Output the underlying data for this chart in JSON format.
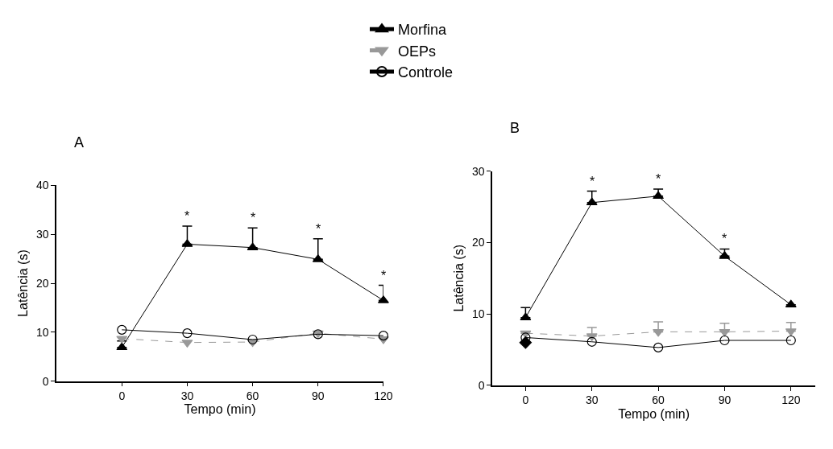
{
  "chart_data": [
    {
      "type": "line",
      "title": "A",
      "xlabel": "Tempo (min)",
      "ylabel": "Latência (s)",
      "x": [
        0,
        30,
        60,
        90,
        120
      ],
      "xlim": [
        -30,
        120
      ],
      "xticks": [
        0,
        30,
        60,
        90,
        120
      ],
      "ylim": [
        0,
        40
      ],
      "yticks": [
        0,
        10,
        20,
        30,
        40
      ],
      "legend": "top",
      "series": [
        {
          "name": "Morfina",
          "color": "#000000",
          "marker": "triangle",
          "line_style": "solid",
          "values": [
            6.9,
            28.0,
            27.3,
            24.9,
            16.5
          ],
          "errors": [
            [
              6.9,
              8.2
            ],
            [
              28.0,
              31.7
            ],
            [
              27.3,
              31.3
            ],
            [
              24.9,
              29.1
            ],
            [
              16.5,
              19.6
            ]
          ]
        },
        {
          "name": "OEPs",
          "color": "#999999",
          "marker": "triangle-down",
          "line_style": "dashed",
          "values": [
            8.7,
            7.9,
            8.0,
            9.8,
            8.6
          ]
        },
        {
          "name": "Controle",
          "color": "#000000",
          "marker": "circle-open",
          "line_style": "solid",
          "values": [
            10.5,
            9.8,
            8.5,
            9.6,
            9.3
          ]
        }
      ],
      "annotations": [
        {
          "text": "*",
          "x": 30,
          "y": 31.7
        },
        {
          "text": "*",
          "x": 60,
          "y": 31.3
        },
        {
          "text": "*",
          "x": 90,
          "y": 29.1
        },
        {
          "text": "*",
          "x": 120,
          "y": 19.6
        }
      ]
    },
    {
      "type": "line",
      "title": "B",
      "xlabel": "Tempo (min)",
      "ylabel": "Latência (s)",
      "x": [
        0,
        30,
        60,
        90,
        120
      ],
      "xlim": [
        -15,
        131
      ],
      "xticks": [
        0,
        30,
        60,
        90,
        120
      ],
      "ylim": [
        0,
        30
      ],
      "yticks": [
        0,
        10,
        20,
        30
      ],
      "series": [
        {
          "color": "#000000",
          "marker": "triangle",
          "line_style": "solid",
          "values": [
            9.5,
            25.6,
            26.5,
            18.1,
            11.3
          ],
          "errors": [
            [
              9.5,
              10.9
            ],
            [
              25.6,
              27.2
            ],
            [
              26.5,
              27.5
            ],
            [
              18.1,
              19.1
            ],
            null
          ]
        },
        {
          "color": "#999999",
          "marker": "triangle-down",
          "line_style": "dashed",
          "values": [
            7.3,
            6.9,
            7.5,
            7.5,
            7.6
          ],
          "errors": [
            null,
            [
              6.9,
              8.1
            ],
            [
              7.5,
              8.9
            ],
            [
              7.5,
              8.7
            ],
            [
              7.6,
              8.8
            ]
          ]
        },
        {
          "color": "#000000",
          "marker": "circle-open",
          "line_style": "solid",
          "values": [
            6.7,
            6.1,
            5.3,
            6.3,
            6.3
          ]
        },
        {
          "type": "scatter",
          "color": "#000000",
          "marker": "diamond",
          "x": [
            0
          ],
          "values": [
            6.0
          ]
        }
      ],
      "annotations": [
        {
          "text": "*",
          "x": 30,
          "y": 27.2
        },
        {
          "text": "*",
          "x": 60,
          "y": 27.5
        },
        {
          "text": "*",
          "x": 90,
          "y": 19.1
        }
      ]
    }
  ]
}
